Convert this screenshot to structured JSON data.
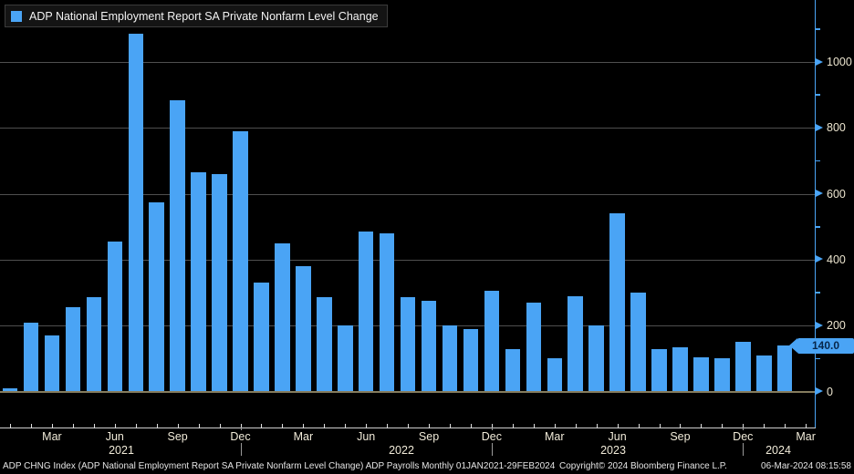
{
  "legend": {
    "series_label": "ADP National Employment Report SA Private Nonfarm Level Change"
  },
  "chart_data": {
    "type": "bar",
    "title": "ADP National Employment Report SA Private Nonfarm Level Change",
    "x": [
      "Jan 2021",
      "Feb 2021",
      "Mar 2021",
      "Apr 2021",
      "May 2021",
      "Jun 2021",
      "Jul 2021",
      "Aug 2021",
      "Sep 2021",
      "Oct 2021",
      "Nov 2021",
      "Dec 2021",
      "Jan 2022",
      "Feb 2022",
      "Mar 2022",
      "Apr 2022",
      "May 2022",
      "Jun 2022",
      "Jul 2022",
      "Aug 2022",
      "Sep 2022",
      "Oct 2022",
      "Nov 2022",
      "Dec 2022",
      "Jan 2023",
      "Feb 2023",
      "Mar 2023",
      "Apr 2023",
      "May 2023",
      "Jun 2023",
      "Jul 2023",
      "Aug 2023",
      "Sep 2023",
      "Oct 2023",
      "Nov 2023",
      "Dec 2023",
      "Jan 2024",
      "Feb 2024"
    ],
    "values": [
      10,
      210,
      170,
      255,
      285,
      455,
      1085,
      575,
      885,
      665,
      660,
      790,
      330,
      450,
      380,
      285,
      200,
      485,
      480,
      285,
      275,
      200,
      190,
      305,
      130,
      270,
      100,
      290,
      200,
      540,
      300,
      130,
      135,
      105,
      100,
      150,
      110,
      140
    ],
    "ylim": [
      0,
      1100
    ],
    "yticks_major": [
      0,
      200,
      400,
      600,
      800,
      1000
    ],
    "yticks_minor": [
      100,
      300,
      500,
      700,
      900,
      1100
    ],
    "x_axis_extra_tick": "Mar 2024",
    "quarter_label_months": [
      "Mar",
      "Jun",
      "Sep",
      "Dec"
    ],
    "year_labels": [
      "2021",
      "2022",
      "2023",
      "2024"
    ],
    "last_value_badge": "140.0",
    "grid": true,
    "legend_position": "top-left",
    "series_color": "#4AA4F5"
  },
  "footer": {
    "left": "ADP CHNG Index (ADP National Employment Report SA Private Nonfarm Level Change) ADP Payrolls  Monthly 01JAN2021-29FEB2024",
    "center": "Copyright© 2024 Bloomberg Finance L.P.",
    "right": "06-Mar-2024 08:15:58"
  },
  "colors": {
    "background": "#000000",
    "bar": "#4AA4F5",
    "axis": "#4AA4F5",
    "gridline": "#4f4f4f",
    "zero_line": "#857c5e",
    "x_axis_line": "#cfcfcf",
    "y_tick_label": "#ece5cf",
    "month_label": "#f0ead8",
    "badge_text": "#07264a",
    "footer_text": "#e5e5e5"
  }
}
